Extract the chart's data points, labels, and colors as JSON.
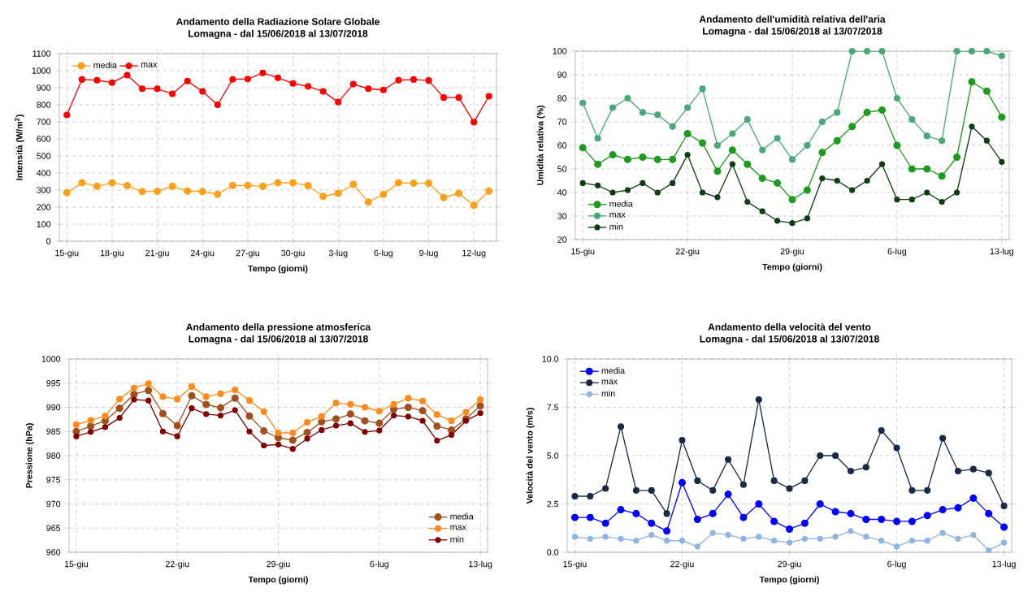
{
  "chart_data": [
    {
      "type": "line",
      "title": "Andamento della Radiazione Solare Globale",
      "subtitle": "Lomagna - dal 15/06/2018 al 13/07/2018",
      "xlabel": "Tempo (giorni)",
      "ylabel": "Intensità (W/m$^{2}$)",
      "x": [
        "2018-06-15",
        "2018-06-16",
        "2018-06-17",
        "2018-06-18",
        "2018-06-19",
        "2018-06-20",
        "2018-06-21",
        "2018-06-22",
        "2018-06-23",
        "2018-06-24",
        "2018-06-25",
        "2018-06-26",
        "2018-06-27",
        "2018-06-28",
        "2018-06-29",
        "2018-06-30",
        "2018-07-01",
        "2018-07-02",
        "2018-07-03",
        "2018-07-04",
        "2018-07-05",
        "2018-07-06",
        "2018-07-07",
        "2018-07-08",
        "2018-07-09",
        "2018-07-10",
        "2018-07-11",
        "2018-07-12",
        "2018-07-13"
      ],
      "series": [
        {
          "name": "media",
          "color": "#ffa01a",
          "values": [
            284,
            343,
            322,
            343,
            326,
            291,
            293,
            322,
            294,
            291,
            275,
            327,
            327,
            322,
            343,
            343,
            326,
            263,
            281,
            333,
            229,
            275,
            343,
            340,
            340,
            256,
            281,
            210,
            294
          ]
        },
        {
          "name": "max",
          "color": "#ff0000",
          "values": [
            740,
            948,
            944,
            930,
            974,
            894,
            894,
            864,
            939,
            878,
            800,
            949,
            951,
            987,
            958,
            925,
            908,
            878,
            816,
            921,
            894,
            887,
            944,
            948,
            942,
            842,
            842,
            698,
            850
          ]
        }
      ],
      "xlim": [
        "2018-06-14T12:00",
        "2018-07-13T12:00"
      ],
      "xticks": [
        {
          "value": "2018-06-15",
          "label": "15-giu"
        },
        {
          "value": "2018-06-18",
          "label": "18-giu"
        },
        {
          "value": "2018-06-21",
          "label": "21-giu"
        },
        {
          "value": "2018-06-24",
          "label": "24-giu"
        },
        {
          "value": "2018-06-27",
          "label": "27-giu"
        },
        {
          "value": "2018-06-30",
          "label": "30-giu"
        },
        {
          "value": "2018-07-03",
          "label": "3-lug"
        },
        {
          "value": "2018-07-06",
          "label": "6-lug"
        },
        {
          "value": "2018-07-09",
          "label": "9-lug"
        },
        {
          "value": "2018-07-12",
          "label": "12-lug"
        }
      ],
      "ylim": [
        0,
        1100
      ],
      "yticks": [
        0,
        100,
        200,
        300,
        400,
        500,
        600,
        700,
        800,
        900,
        1000,
        1100
      ],
      "grid": true,
      "legend": "top left",
      "marker": "circle"
    },
    {
      "type": "line",
      "title": "Andamento dell'umidità relativa dell'aria",
      "subtitle": "Lomagna - dal 15/06/2018 al 13/07/2018",
      "xlabel": "Tempo (giorni)",
      "ylabel": "Umidità relativa (%)",
      "x": [
        "2018-06-15",
        "2018-06-16",
        "2018-06-17",
        "2018-06-18",
        "2018-06-19",
        "2018-06-20",
        "2018-06-21",
        "2018-06-22",
        "2018-06-23",
        "2018-06-24",
        "2018-06-25",
        "2018-06-26",
        "2018-06-27",
        "2018-06-28",
        "2018-06-29",
        "2018-06-30",
        "2018-07-01",
        "2018-07-02",
        "2018-07-03",
        "2018-07-04",
        "2018-07-05",
        "2018-07-06",
        "2018-07-07",
        "2018-07-08",
        "2018-07-09",
        "2018-07-10",
        "2018-07-11",
        "2018-07-12",
        "2018-07-13"
      ],
      "series": [
        {
          "name": "media",
          "color": "#1e9a1e",
          "values": [
            59,
            52,
            56,
            54,
            55,
            54,
            54,
            65,
            61,
            49,
            58,
            52,
            46,
            44,
            37,
            41,
            57,
            62,
            68,
            74,
            75,
            60,
            50,
            50,
            47,
            55,
            87,
            83,
            72
          ]
        },
        {
          "name": "max",
          "color": "#4aa878",
          "values": [
            78,
            63,
            76,
            80,
            74,
            73,
            68,
            76,
            84,
            60,
            65,
            71,
            58,
            63,
            54,
            60,
            70,
            74,
            100,
            100,
            100,
            80,
            71,
            64,
            62,
            100,
            100,
            100,
            98
          ]
        },
        {
          "name": "min",
          "color": "#0f3d14",
          "values": [
            44,
            43,
            40,
            41,
            44,
            40,
            44,
            56,
            40,
            38,
            52,
            36,
            32,
            28,
            27,
            29,
            46,
            45,
            41,
            45,
            52,
            37,
            37,
            40,
            36,
            40,
            68,
            62,
            53
          ]
        }
      ],
      "xlim": [
        "2018-06-14T12:00",
        "2018-07-13T12:00"
      ],
      "xticks": [
        {
          "value": "2018-06-15",
          "label": "15-giu"
        },
        {
          "value": "2018-06-22",
          "label": "22-giu"
        },
        {
          "value": "2018-06-29",
          "label": "29-giu"
        },
        {
          "value": "2018-07-06",
          "label": "6-lug"
        },
        {
          "value": "2018-07-13",
          "label": "13-lug"
        }
      ],
      "ylim": [
        20,
        100
      ],
      "yticks": [
        20,
        30,
        40,
        50,
        60,
        70,
        80,
        90,
        100
      ],
      "grid": true,
      "legend": "bottom left",
      "marker": "circle"
    },
    {
      "type": "line",
      "title": "Andamento della pressione atmosferica",
      "subtitle": "Lomagna - dal 15/06/2018 al 13/07/2018",
      "xlabel": "Tempo (giorni)",
      "ylabel": "Pressione (hPa)",
      "x": [
        "2018-06-15",
        "2018-06-16",
        "2018-06-17",
        "2018-06-18",
        "2018-06-19",
        "2018-06-20",
        "2018-06-21",
        "2018-06-22",
        "2018-06-23",
        "2018-06-24",
        "2018-06-25",
        "2018-06-26",
        "2018-06-27",
        "2018-06-28",
        "2018-06-29",
        "2018-06-30",
        "2018-07-01",
        "2018-07-02",
        "2018-07-03",
        "2018-07-04",
        "2018-07-05",
        "2018-07-06",
        "2018-07-07",
        "2018-07-08",
        "2018-07-09",
        "2018-07-10",
        "2018-07-11",
        "2018-07-12",
        "2018-07-13"
      ],
      "series": [
        {
          "name": "media",
          "color": "#a0501e",
          "values": [
            985.0,
            986.1,
            987.2,
            989.8,
            992.7,
            993.5,
            988.7,
            986.2,
            992.4,
            990.6,
            989.9,
            991.9,
            988.2,
            985.1,
            983.7,
            983.2,
            984.8,
            987.0,
            987.6,
            988.6,
            987.2,
            986.7,
            989.6,
            990.0,
            989.3,
            986.1,
            985.3,
            987.6,
            990.3
          ]
        },
        {
          "name": "max",
          "color": "#ff8a1e",
          "values": [
            986.4,
            987.3,
            988.2,
            991.7,
            994.0,
            994.9,
            992.2,
            991.7,
            994.3,
            992.2,
            992.8,
            993.6,
            991.4,
            989.1,
            984.7,
            984.7,
            986.9,
            988.1,
            990.9,
            990.6,
            990.0,
            989.2,
            990.6,
            991.9,
            991.3,
            988.5,
            987.2,
            989.0,
            991.6
          ]
        },
        {
          "name": "min",
          "color": "#800000",
          "values": [
            984.0,
            984.9,
            985.9,
            987.8,
            991.6,
            991.4,
            985.0,
            984.0,
            989.8,
            988.6,
            988.3,
            989.4,
            985.0,
            982.1,
            982.3,
            981.4,
            983.5,
            985.3,
            986.2,
            986.7,
            984.9,
            985.2,
            988.3,
            988.1,
            987.2,
            983.1,
            984.3,
            987.2,
            988.8
          ]
        }
      ],
      "xlim": [
        "2018-06-14T12:00",
        "2018-07-13T12:00"
      ],
      "xticks": [
        {
          "value": "2018-06-15",
          "label": "15-giu"
        },
        {
          "value": "2018-06-22",
          "label": "22-giu"
        },
        {
          "value": "2018-06-29",
          "label": "29-giu"
        },
        {
          "value": "2018-07-06",
          "label": "6-lug"
        },
        {
          "value": "2018-07-13",
          "label": "13-lug"
        }
      ],
      "ylim": [
        960,
        1000
      ],
      "yticks": [
        960,
        965,
        970,
        975,
        980,
        985,
        990,
        995,
        1000
      ],
      "grid": true,
      "legend": "bottom right",
      "marker": "circle"
    },
    {
      "type": "line",
      "title": "Andamento della velocità del vento",
      "subtitle": "Lomagna - dal 15/06/2018 al 13/07/2018",
      "xlabel": "Tempo (giorni)",
      "ylabel": "Velocità del vento (m/s)",
      "x": [
        "2018-06-15",
        "2018-06-16",
        "2018-06-17",
        "2018-06-18",
        "2018-06-19",
        "2018-06-20",
        "2018-06-21",
        "2018-06-22",
        "2018-06-23",
        "2018-06-24",
        "2018-06-25",
        "2018-06-26",
        "2018-06-27",
        "2018-06-28",
        "2018-06-29",
        "2018-06-30",
        "2018-07-01",
        "2018-07-02",
        "2018-07-03",
        "2018-07-04",
        "2018-07-05",
        "2018-07-06",
        "2018-07-07",
        "2018-07-08",
        "2018-07-09",
        "2018-07-10",
        "2018-07-11",
        "2018-07-12",
        "2018-07-13"
      ],
      "series": [
        {
          "name": "media",
          "color": "#0000ff",
          "values": [
            1.8,
            1.8,
            1.5,
            2.2,
            2.0,
            1.5,
            1.1,
            3.6,
            1.7,
            2.0,
            3.0,
            1.8,
            2.5,
            1.6,
            1.2,
            1.5,
            2.5,
            2.1,
            2.0,
            1.7,
            1.7,
            1.6,
            1.6,
            1.9,
            2.2,
            2.3,
            2.8,
            2.0,
            1.3
          ]
        },
        {
          "name": "max",
          "color": "#1a2a44",
          "values": [
            2.9,
            2.9,
            3.3,
            6.5,
            3.2,
            3.2,
            2.0,
            5.8,
            3.7,
            3.2,
            4.8,
            3.5,
            7.9,
            3.7,
            3.3,
            3.7,
            5.0,
            5.0,
            4.2,
            4.4,
            6.3,
            5.4,
            3.2,
            3.2,
            5.9,
            4.2,
            4.3,
            4.1,
            2.4
          ]
        },
        {
          "name": "min",
          "color": "#8fb4e3",
          "values": [
            0.8,
            0.7,
            0.8,
            0.7,
            0.6,
            0.9,
            0.6,
            0.6,
            0.3,
            1.0,
            0.9,
            0.7,
            0.8,
            0.6,
            0.5,
            0.7,
            0.7,
            0.8,
            1.1,
            0.8,
            0.6,
            0.3,
            0.6,
            0.6,
            1.0,
            0.7,
            0.9,
            0.1,
            0.5
          ]
        }
      ],
      "xlim": [
        "2018-06-14T12:00",
        "2018-07-13T12:00"
      ],
      "xticks": [
        {
          "value": "2018-06-15",
          "label": "15-giu"
        },
        {
          "value": "2018-06-22",
          "label": "22-giu"
        },
        {
          "value": "2018-06-29",
          "label": "29-giu"
        },
        {
          "value": "2018-07-06",
          "label": "6-lug"
        },
        {
          "value": "2018-07-13",
          "label": "13-lug"
        }
      ],
      "ylim": [
        0,
        10
      ],
      "yticks": [
        {
          "value": 0,
          "label": "0.0"
        },
        {
          "value": 2.5,
          "label": "2.5"
        },
        {
          "value": 5,
          "label": "5.0"
        },
        {
          "value": 7.5,
          "label": "7.5"
        },
        {
          "value": 10,
          "label": "10.0"
        }
      ],
      "grid": true,
      "legend": "top left",
      "marker": "circle"
    }
  ]
}
